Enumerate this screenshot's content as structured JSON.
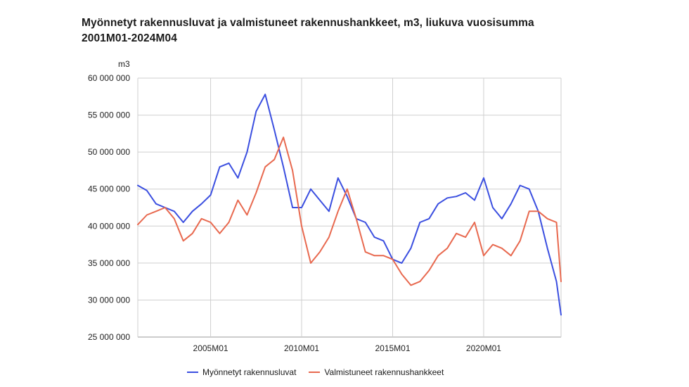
{
  "title_line1": "Myönnetyt rakennusluvat ja valmistuneet rakennushankkeet, m3, liukuva vuosisumma",
  "title_line2": "2001M01-2024M04",
  "chart_data": {
    "type": "line",
    "title": "Myönnetyt rakennusluvat ja valmistuneet rakennushankkeet, m3, liukuva vuosisumma 2001M01-2024M04",
    "ylabel": "m3",
    "ylim": [
      25000000,
      60000000
    ],
    "yticks": [
      25000000,
      30000000,
      35000000,
      40000000,
      45000000,
      50000000,
      55000000,
      60000000
    ],
    "ytick_labels": [
      "25 000 000",
      "30 000 000",
      "35 000 000",
      "40 000 000",
      "45 000 000",
      "50 000 000",
      "55 000 000",
      "60 000 000"
    ],
    "x_range": [
      "2001-01",
      "2024-04"
    ],
    "xticks": [
      "2005-01",
      "2010-01",
      "2015-01",
      "2020-01"
    ],
    "xtick_labels": [
      "2005M01",
      "2010M01",
      "2015M01",
      "2020M01"
    ],
    "grid": true,
    "legend_position": "bottom",
    "series": [
      {
        "name": "Myönnetyt rakennusluvat",
        "color": "#3b4fe0",
        "x": [
          "2001-01",
          "2001-07",
          "2002-01",
          "2002-07",
          "2003-01",
          "2003-07",
          "2004-01",
          "2004-07",
          "2005-01",
          "2005-07",
          "2006-01",
          "2006-07",
          "2007-01",
          "2007-07",
          "2008-01",
          "2008-07",
          "2009-01",
          "2009-07",
          "2010-01",
          "2010-07",
          "2011-01",
          "2011-07",
          "2012-01",
          "2012-07",
          "2013-01",
          "2013-07",
          "2014-01",
          "2014-07",
          "2015-01",
          "2015-07",
          "2016-01",
          "2016-07",
          "2017-01",
          "2017-07",
          "2018-01",
          "2018-07",
          "2019-01",
          "2019-07",
          "2020-01",
          "2020-07",
          "2021-01",
          "2021-07",
          "2022-01",
          "2022-07",
          "2023-01",
          "2023-07",
          "2024-01",
          "2024-04"
        ],
        "values": [
          45500000,
          44800000,
          43000000,
          42500000,
          42000000,
          40500000,
          42000000,
          43000000,
          44200000,
          48000000,
          48500000,
          46500000,
          50000000,
          55500000,
          57800000,
          53000000,
          48000000,
          42500000,
          42500000,
          45000000,
          43500000,
          42000000,
          46500000,
          44000000,
          41000000,
          40500000,
          38500000,
          38000000,
          35500000,
          35000000,
          37000000,
          40500000,
          41000000,
          43000000,
          43800000,
          44000000,
          44500000,
          43500000,
          46500000,
          42500000,
          41000000,
          43000000,
          45500000,
          45000000,
          42000000,
          37000000,
          32500000,
          28000000
        ]
      },
      {
        "name": "Valmistuneet rakennushankkeet",
        "color": "#e8694f",
        "x": [
          "2001-01",
          "2001-07",
          "2002-01",
          "2002-07",
          "2003-01",
          "2003-07",
          "2004-01",
          "2004-07",
          "2005-01",
          "2005-07",
          "2006-01",
          "2006-07",
          "2007-01",
          "2007-07",
          "2008-01",
          "2008-07",
          "2009-01",
          "2009-07",
          "2010-01",
          "2010-07",
          "2011-01",
          "2011-07",
          "2012-01",
          "2012-07",
          "2013-01",
          "2013-07",
          "2014-01",
          "2014-07",
          "2015-01",
          "2015-07",
          "2016-01",
          "2016-07",
          "2017-01",
          "2017-07",
          "2018-01",
          "2018-07",
          "2019-01",
          "2019-07",
          "2020-01",
          "2020-07",
          "2021-01",
          "2021-07",
          "2022-01",
          "2022-07",
          "2023-01",
          "2023-07",
          "2024-01",
          "2024-04"
        ],
        "values": [
          40200000,
          41500000,
          42000000,
          42500000,
          41000000,
          38000000,
          39000000,
          41000000,
          40500000,
          39000000,
          40500000,
          43500000,
          41500000,
          44500000,
          48000000,
          49000000,
          52000000,
          47500000,
          40000000,
          35000000,
          36500000,
          38500000,
          42000000,
          45000000,
          41000000,
          36500000,
          36000000,
          36000000,
          35500000,
          33500000,
          32000000,
          32500000,
          34000000,
          36000000,
          37000000,
          39000000,
          38500000,
          40500000,
          36000000,
          37500000,
          37000000,
          36000000,
          38000000,
          42000000,
          42000000,
          41000000,
          40500000,
          32500000
        ]
      }
    ]
  }
}
